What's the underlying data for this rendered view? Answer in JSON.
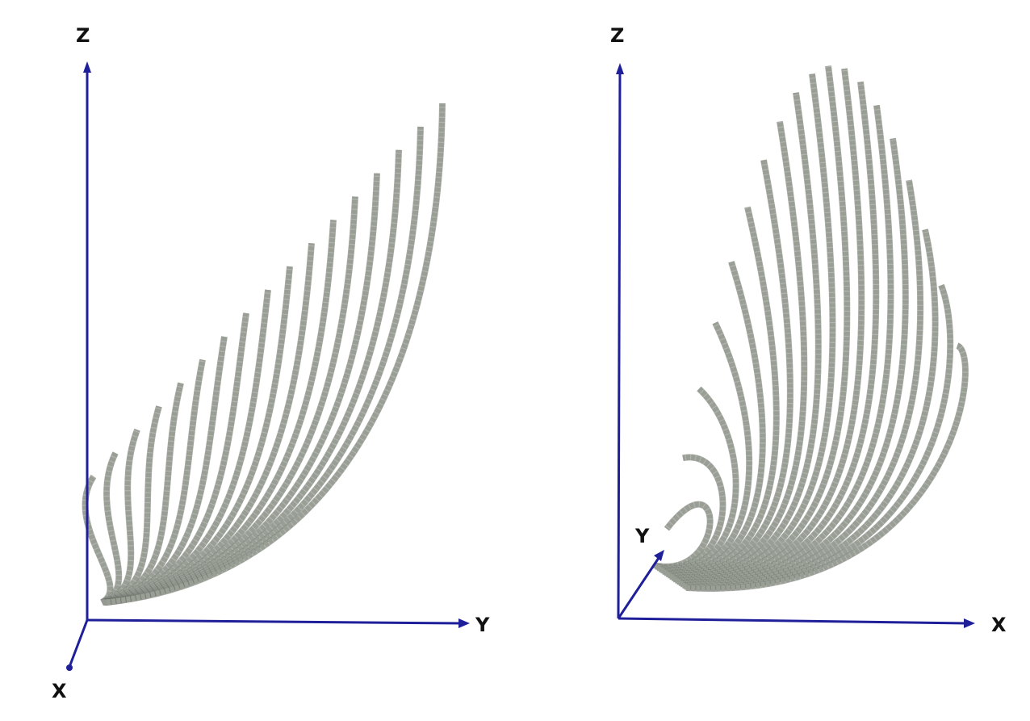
{
  "panels": [
    {
      "id": "left-view",
      "axes": {
        "vertical": "Z",
        "horizontal": "Y",
        "depth": "X"
      }
    },
    {
      "id": "right-view",
      "axes": {
        "vertical": "Z",
        "horizontal": "X",
        "depth": "Y"
      }
    }
  ],
  "colors": {
    "axis": "#1f1f9a",
    "curve": "#9a9f96",
    "curve_shadow": "#6f756d",
    "label": "#111111",
    "background": "#ffffff"
  }
}
